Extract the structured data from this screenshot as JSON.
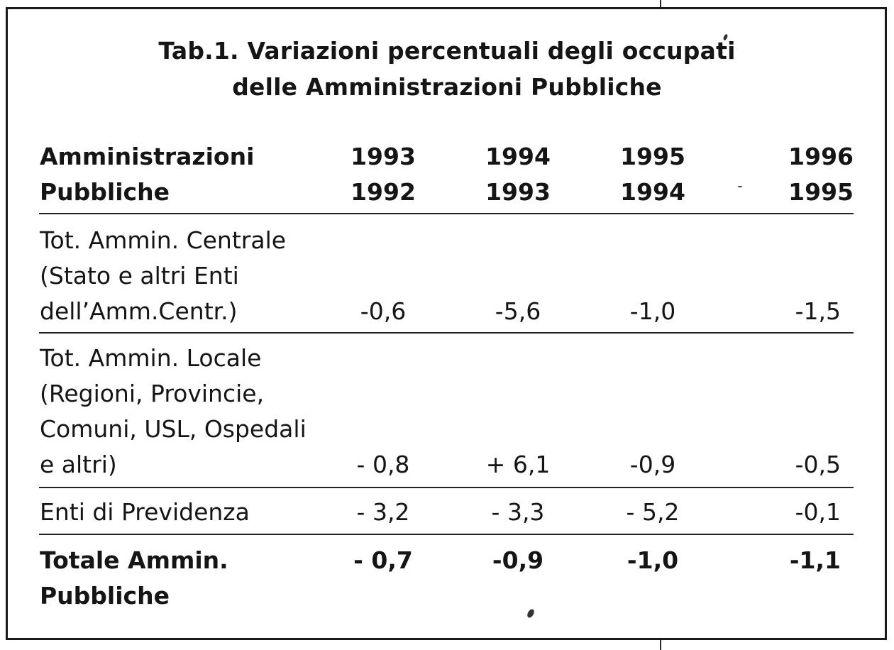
{
  "title": {
    "line1": "Tab.1. Variazioni percentuali degli occupati",
    "line2": "delle Amministrazioni Pubbliche"
  },
  "header": {
    "label_line1": "Amministrazioni",
    "label_line2": "Pubbliche",
    "columns": [
      {
        "top": "1993",
        "bottom": "1992"
      },
      {
        "top": "1994",
        "bottom": "1993"
      },
      {
        "top": "1995",
        "bottom": "1994"
      },
      {
        "top": "1996",
        "bottom": "1995"
      }
    ]
  },
  "rows": [
    {
      "label_lines": [
        "Tot. Ammin. Centrale",
        "(Stato e altri Enti",
        "dell’Amm.Centr.)"
      ],
      "values": [
        "-0,6",
        "-5,6",
        "-1,0",
        "-1,5"
      ]
    },
    {
      "label_lines": [
        "Tot. Ammin. Locale",
        "(Regioni, Provincie,",
        "Comuni, USL, Ospedali",
        "e altri)"
      ],
      "values": [
        "- 0,8",
        "+ 6,1",
        "-0,9",
        "-0,5"
      ]
    },
    {
      "label_lines": [
        "Enti di Previdenza"
      ],
      "values": [
        "- 3,2",
        "- 3,3",
        "- 5,2",
        "-0,1"
      ]
    }
  ],
  "total": {
    "label_lines": [
      "Totale Ammin.",
      "Pubbliche"
    ],
    "values": [
      "- 0,7",
      "-0,9",
      "-1,0",
      "-1,1"
    ]
  }
}
